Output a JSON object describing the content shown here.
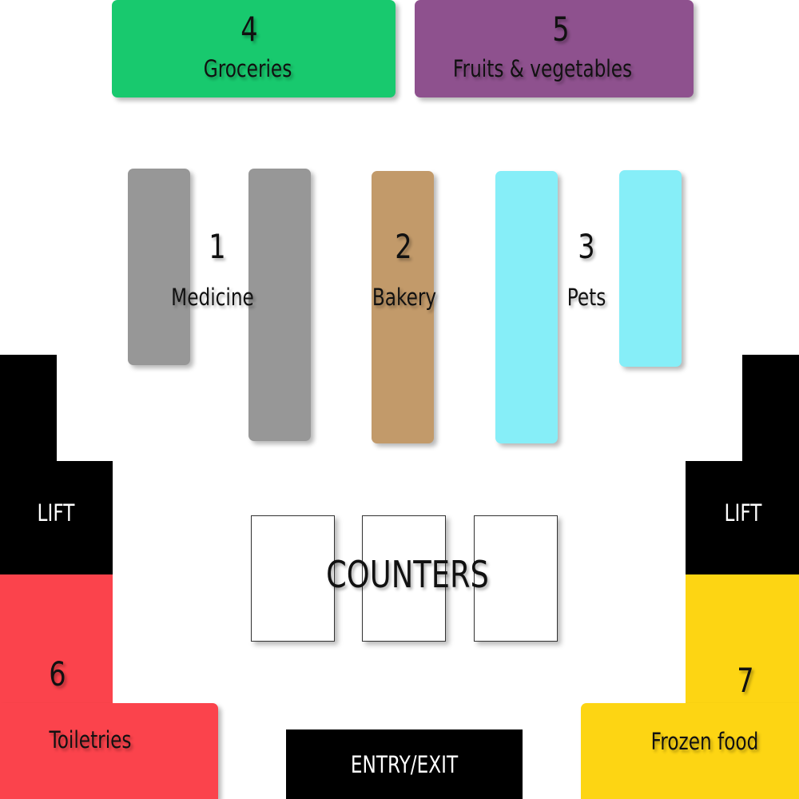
{
  "sections": {
    "groceries": {
      "number": "4",
      "name": "Groceries",
      "color": "#18c96e"
    },
    "fruits": {
      "number": "5",
      "name": "Fruits & vegetables",
      "color": "#8e518e"
    },
    "medicine": {
      "number": "1",
      "name": "Medicine",
      "color": "#979797"
    },
    "bakery": {
      "number": "2",
      "name": "Bakery",
      "color": "#c29a6a"
    },
    "pets": {
      "number": "3",
      "name": "Pets",
      "color": "#86eef8"
    },
    "toiletries": {
      "number": "6",
      "name": "Toiletries",
      "color": "#fb434c"
    },
    "frozen": {
      "number": "7",
      "name": "Frozen food",
      "color": "#fdd513"
    }
  },
  "lifts": {
    "left": "LIFT",
    "right": "LIFT"
  },
  "counters": {
    "label": "COUNTERS",
    "count": 3
  },
  "entry": {
    "label": "ENTRY/EXIT"
  }
}
